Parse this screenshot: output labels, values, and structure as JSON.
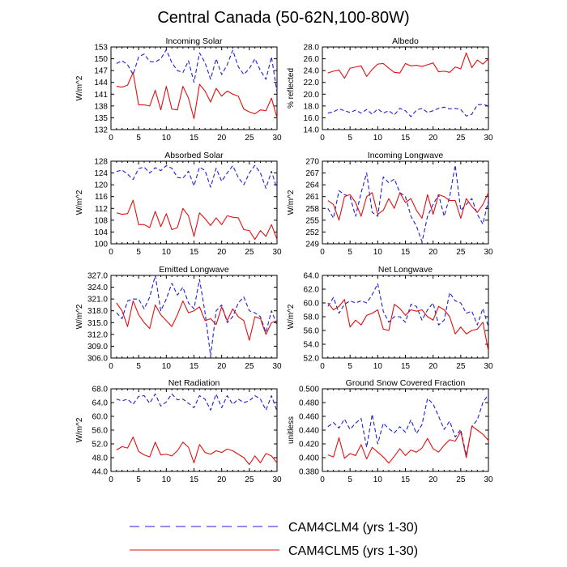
{
  "figure": {
    "title": "Central Canada (50-62N,100-80W)",
    "series_colors": {
      "CAM4CLM4": "#1f1fd6",
      "CAM4CLM5": "#e01010"
    },
    "legend": [
      {
        "label": "CAM4CLM4 (yrs 1-30)",
        "style": "dashed",
        "color": "#1f1fd6"
      },
      {
        "label": "CAM4CLM5 (yrs 1-30)",
        "style": "solid",
        "color": "#e01010"
      }
    ]
  },
  "chart_data": [
    {
      "type": "line",
      "title": "Incoming Solar",
      "ylabel": "W/m^2",
      "xlim": [
        0,
        30
      ],
      "xticks": [
        "0",
        "5",
        "10",
        "15",
        "20",
        "25",
        "30"
      ],
      "ylim": [
        132,
        153
      ],
      "yticks": [
        "132",
        "135",
        "138",
        "141",
        "144",
        "147",
        "150",
        "153"
      ],
      "x": [
        1,
        2,
        3,
        4,
        5,
        6,
        7,
        8,
        9,
        10,
        11,
        12,
        13,
        14,
        15,
        16,
        17,
        18,
        19,
        20,
        21,
        22,
        23,
        24,
        25,
        26,
        27,
        28,
        29,
        30
      ],
      "series": [
        {
          "name": "CAM4CLM4 (yrs 1-30)",
          "style": "dashed",
          "values": [
            148.8,
            149.5,
            148.5,
            146.0,
            150.5,
            151.2,
            149.3,
            149.2,
            150.0,
            152.3,
            149.0,
            147.0,
            146.5,
            149.5,
            144.0,
            151.5,
            149.0,
            144.8,
            150.0,
            146.0,
            148.5,
            152.2,
            148.0,
            146.0,
            147.5,
            150.0,
            147.0,
            144.8,
            150.5,
            141.5
          ]
        },
        {
          "name": "CAM4CLM5 (yrs 1-30)",
          "style": "solid",
          "values": [
            143.0,
            142.8,
            143.3,
            146.5,
            138.3,
            138.3,
            138.0,
            142.0,
            137.0,
            143.0,
            137.2,
            137.0,
            143.0,
            140.0,
            134.8,
            143.5,
            141.8,
            139.0,
            142.5,
            140.5,
            141.8,
            141.0,
            140.5,
            137.2,
            136.5,
            136.0,
            137.0,
            136.8,
            140.0,
            135.0
          ]
        }
      ]
    },
    {
      "type": "line",
      "title": "Albedo",
      "ylabel": "% reflected",
      "xlim": [
        0,
        30
      ],
      "xticks": [
        "0",
        "5",
        "10",
        "15",
        "20",
        "25",
        "30"
      ],
      "ylim": [
        14.0,
        28.0
      ],
      "yticks": [
        "14.0",
        "16.0",
        "18.0",
        "20.0",
        "22.0",
        "24.0",
        "26.0",
        "28.0"
      ],
      "x": [
        1,
        2,
        3,
        4,
        5,
        6,
        7,
        8,
        9,
        10,
        11,
        12,
        13,
        14,
        15,
        16,
        17,
        18,
        19,
        20,
        21,
        22,
        23,
        24,
        25,
        26,
        27,
        28,
        29,
        30
      ],
      "series": [
        {
          "name": "CAM4CLM4 (yrs 1-30)",
          "style": "dashed",
          "values": [
            16.8,
            17.0,
            17.5,
            17.2,
            16.9,
            17.3,
            16.8,
            17.4,
            16.6,
            17.5,
            16.8,
            17.2,
            16.5,
            17.6,
            17.2,
            16.2,
            17.3,
            17.6,
            16.9,
            17.2,
            17.6,
            17.8,
            17.5,
            17.6,
            17.4,
            16.3,
            16.6,
            18.2,
            18.3,
            18.0
          ]
        },
        {
          "name": "CAM4CLM5 (yrs 1-30)",
          "style": "solid",
          "values": [
            23.6,
            23.9,
            24.1,
            22.7,
            24.4,
            24.6,
            24.8,
            23.0,
            24.2,
            25.1,
            25.2,
            24.4,
            23.7,
            23.6,
            25.2,
            24.8,
            24.9,
            24.7,
            25.0,
            25.3,
            23.8,
            23.9,
            23.7,
            24.6,
            24.3,
            27.0,
            24.5,
            25.8,
            25.1,
            26.0
          ]
        }
      ]
    },
    {
      "type": "line",
      "title": "Absorbed Solar",
      "ylabel": "W/m^2",
      "xlim": [
        0,
        30
      ],
      "xticks": [
        "0",
        "5",
        "10",
        "15",
        "20",
        "25",
        "30"
      ],
      "ylim": [
        100,
        128
      ],
      "yticks": [
        "100",
        "104",
        "108",
        "112",
        "116",
        "120",
        "124",
        "128"
      ],
      "x": [
        1,
        2,
        3,
        4,
        5,
        6,
        7,
        8,
        9,
        10,
        11,
        12,
        13,
        14,
        15,
        16,
        17,
        18,
        19,
        20,
        21,
        22,
        23,
        24,
        25,
        26,
        27,
        28,
        29,
        30
      ],
      "series": [
        {
          "name": "CAM4CLM4 (yrs 1-30)",
          "style": "dashed",
          "values": [
            124.5,
            125.0,
            123.6,
            121.8,
            125.5,
            126.0,
            124.0,
            125.8,
            124.8,
            126.5,
            125.6,
            122.5,
            122.2,
            124.6,
            119.6,
            126.0,
            124.8,
            119.2,
            125.6,
            121.2,
            124.0,
            126.5,
            122.5,
            120.0,
            124.0,
            126.6,
            124.0,
            118.8,
            124.6,
            118.6
          ]
        },
        {
          "name": "CAM4CLM5 (yrs 1-30)",
          "style": "solid",
          "values": [
            110.5,
            110.0,
            110.2,
            114.8,
            106.5,
            106.5,
            105.5,
            111.0,
            105.8,
            110.2,
            104.8,
            105.5,
            112.0,
            109.5,
            102.5,
            110.5,
            108.5,
            106.2,
            108.8,
            106.5,
            109.5,
            109.0,
            108.8,
            104.8,
            104.5,
            101.5,
            104.5,
            102.5,
            106.5,
            101.5
          ]
        }
      ]
    },
    {
      "type": "line",
      "title": "Incoming Longwave",
      "ylabel": "W/m^2",
      "xlim": [
        0,
        30
      ],
      "xticks": [
        "0",
        "5",
        "10",
        "15",
        "20",
        "25",
        "30"
      ],
      "ylim": [
        249,
        270
      ],
      "yticks": [
        "249",
        "252",
        "255",
        "258",
        "261",
        "264",
        "267",
        "270"
      ],
      "x": [
        1,
        2,
        3,
        4,
        5,
        6,
        7,
        8,
        9,
        10,
        11,
        12,
        13,
        14,
        15,
        16,
        17,
        18,
        19,
        20,
        21,
        22,
        23,
        24,
        25,
        26,
        27,
        28,
        29,
        30
      ],
      "series": [
        {
          "name": "CAM4CLM4 (yrs 1-30)",
          "style": "dashed",
          "values": [
            258.0,
            255.5,
            262.5,
            261.5,
            261.0,
            256.0,
            262.0,
            267.0,
            257.0,
            256.0,
            266.0,
            264.5,
            265.5,
            262.0,
            261.0,
            256.0,
            253.5,
            249.5,
            256.0,
            259.0,
            261.5,
            256.0,
            261.0,
            269.0,
            257.5,
            259.0,
            260.5,
            256.5,
            254.0,
            260.0
          ]
        },
        {
          "name": "CAM4CLM5 (yrs 1-30)",
          "style": "solid",
          "values": [
            260.0,
            259.0,
            255.0,
            261.0,
            261.5,
            259.5,
            256.0,
            261.0,
            262.0,
            256.5,
            257.5,
            260.5,
            258.0,
            262.0,
            259.5,
            260.5,
            257.5,
            255.5,
            261.5,
            256.5,
            261.5,
            261.0,
            260.0,
            260.0,
            255.5,
            260.5,
            258.5,
            257.0,
            259.0,
            262.0
          ]
        }
      ]
    },
    {
      "type": "line",
      "title": "Emitted Longwave",
      "ylabel": "W/m^2",
      "xlim": [
        0,
        30
      ],
      "xticks": [
        "0",
        "5",
        "10",
        "15",
        "20",
        "25",
        "30"
      ],
      "ylim": [
        306.0,
        327.0
      ],
      "yticks": [
        "306.0",
        "309.0",
        "312.0",
        "315.0",
        "318.0",
        "321.0",
        "324.0",
        "327.0"
      ],
      "x": [
        1,
        2,
        3,
        4,
        5,
        6,
        7,
        8,
        9,
        10,
        11,
        12,
        13,
        14,
        15,
        16,
        17,
        18,
        19,
        20,
        21,
        22,
        23,
        24,
        25,
        26,
        27,
        28,
        29,
        30
      ],
      "series": [
        {
          "name": "CAM4CLM4 (yrs 1-30)",
          "style": "dashed",
          "values": [
            317.5,
            316.0,
            320.5,
            321.0,
            321.0,
            318.5,
            321.5,
            327.0,
            318.0,
            321.0,
            325.0,
            322.0,
            324.0,
            320.0,
            318.5,
            326.0,
            317.5,
            306.5,
            318.0,
            319.5,
            315.0,
            316.5,
            320.0,
            321.5,
            318.0,
            317.5,
            316.5,
            312.5,
            318.0,
            314.5
          ]
        },
        {
          "name": "CAM4CLM5 (yrs 1-30)",
          "style": "solid",
          "values": [
            320.0,
            318.0,
            314.0,
            320.5,
            317.0,
            315.0,
            313.5,
            319.5,
            317.0,
            315.5,
            314.0,
            317.0,
            320.5,
            317.5,
            318.0,
            319.0,
            315.5,
            316.0,
            314.5,
            319.0,
            315.5,
            318.5,
            316.5,
            315.5,
            310.5,
            316.5,
            316.0,
            312.0,
            315.0,
            315.5
          ]
        }
      ]
    },
    {
      "type": "line",
      "title": "Net Longwave",
      "ylabel": "W/m^2",
      "xlim": [
        0,
        30
      ],
      "xticks": [
        "0",
        "5",
        "10",
        "15",
        "20",
        "25",
        "30"
      ],
      "ylim": [
        52.0,
        64.0
      ],
      "yticks": [
        "52.0",
        "54.0",
        "56.0",
        "58.0",
        "60.0",
        "62.0",
        "64.0"
      ],
      "x": [
        1,
        2,
        3,
        4,
        5,
        6,
        7,
        8,
        9,
        10,
        11,
        12,
        13,
        14,
        15,
        16,
        17,
        18,
        19,
        20,
        21,
        22,
        23,
        24,
        25,
        26,
        27,
        28,
        29,
        30
      ],
      "series": [
        {
          "name": "CAM4CLM4 (yrs 1-30)",
          "style": "dashed",
          "values": [
            59.5,
            60.8,
            58.5,
            59.8,
            60.3,
            60.0,
            60.3,
            60.0,
            61.2,
            62.8,
            58.8,
            57.2,
            58.0,
            58.0,
            57.2,
            59.8,
            59.5,
            57.5,
            59.0,
            60.0,
            56.8,
            57.5,
            61.5,
            60.3,
            60.0,
            58.5,
            58.8,
            56.8,
            59.2,
            56.5
          ]
        },
        {
          "name": "CAM4CLM5 (yrs 1-30)",
          "style": "solid",
          "values": [
            60.0,
            59.0,
            59.5,
            60.5,
            56.5,
            57.5,
            56.8,
            58.2,
            58.5,
            59.0,
            56.2,
            56.0,
            59.8,
            59.2,
            58.2,
            59.0,
            58.8,
            59.0,
            58.0,
            57.5,
            59.5,
            59.0,
            58.0,
            55.5,
            56.5,
            55.5,
            56.0,
            56.2,
            57.2,
            53.0
          ]
        }
      ]
    },
    {
      "type": "line",
      "title": "Net Radiation",
      "ylabel": "W/m^2",
      "xlim": [
        0,
        30
      ],
      "xticks": [
        "0",
        "5",
        "10",
        "15",
        "20",
        "25",
        "30"
      ],
      "ylim": [
        44.0,
        68.0
      ],
      "yticks": [
        "44.0",
        "48.0",
        "52.0",
        "56.0",
        "60.0",
        "64.0",
        "68.0"
      ],
      "x": [
        1,
        2,
        3,
        4,
        5,
        6,
        7,
        8,
        9,
        10,
        11,
        12,
        13,
        14,
        15,
        16,
        17,
        18,
        19,
        20,
        21,
        22,
        23,
        24,
        25,
        26,
        27,
        28,
        29,
        30
      ],
      "series": [
        {
          "name": "CAM4CLM4 (yrs 1-30)",
          "style": "dashed",
          "values": [
            65.0,
            64.5,
            65.0,
            63.5,
            65.8,
            66.0,
            63.8,
            66.5,
            63.0,
            64.2,
            66.5,
            64.8,
            65.0,
            63.8,
            62.5,
            66.0,
            65.0,
            61.8,
            66.5,
            62.5,
            66.0,
            63.5,
            65.0,
            64.0,
            64.5,
            66.0,
            65.0,
            61.8,
            66.0,
            61.5
          ]
        },
        {
          "name": "CAM4CLM5 (yrs 1-30)",
          "style": "solid",
          "values": [
            50.2,
            51.2,
            50.8,
            54.0,
            49.8,
            48.8,
            48.2,
            52.5,
            48.8,
            49.0,
            48.5,
            50.0,
            52.5,
            51.0,
            46.5,
            51.8,
            49.5,
            49.0,
            50.0,
            49.5,
            50.5,
            50.0,
            49.0,
            48.0,
            46.0,
            48.5,
            46.5,
            49.2,
            48.5,
            46.5
          ]
        }
      ]
    },
    {
      "type": "line",
      "title": "Ground Snow Covered Fraction",
      "ylabel": "unitless",
      "xlim": [
        0,
        30
      ],
      "xticks": [
        "0",
        "5",
        "10",
        "15",
        "20",
        "25",
        "30"
      ],
      "ylim": [
        0.38,
        0.5
      ],
      "yticks": [
        "0.380",
        "0.400",
        "0.420",
        "0.440",
        "0.460",
        "0.480",
        "0.500"
      ],
      "x": [
        1,
        2,
        3,
        4,
        5,
        6,
        7,
        8,
        9,
        10,
        11,
        12,
        13,
        14,
        15,
        16,
        17,
        18,
        19,
        20,
        21,
        22,
        23,
        24,
        25,
        26,
        27,
        28,
        29,
        30
      ],
      "series": [
        {
          "name": "CAM4CLM4 (yrs 1-30)",
          "style": "dashed",
          "values": [
            0.445,
            0.451,
            0.443,
            0.456,
            0.441,
            0.45,
            0.457,
            0.415,
            0.463,
            0.42,
            0.45,
            0.442,
            0.436,
            0.445,
            0.437,
            0.455,
            0.435,
            0.448,
            0.486,
            0.478,
            0.46,
            0.441,
            0.453,
            0.43,
            0.441,
            0.403,
            0.445,
            0.455,
            0.48,
            0.492
          ]
        },
        {
          "name": "CAM4CLM5 (yrs 1-30)",
          "style": "solid",
          "values": [
            0.404,
            0.401,
            0.429,
            0.399,
            0.406,
            0.403,
            0.419,
            0.398,
            0.415,
            0.408,
            0.401,
            0.392,
            0.402,
            0.413,
            0.403,
            0.411,
            0.408,
            0.414,
            0.428,
            0.413,
            0.408,
            0.418,
            0.426,
            0.424,
            0.438,
            0.4,
            0.446,
            0.44,
            0.434,
            0.425
          ]
        }
      ]
    }
  ]
}
